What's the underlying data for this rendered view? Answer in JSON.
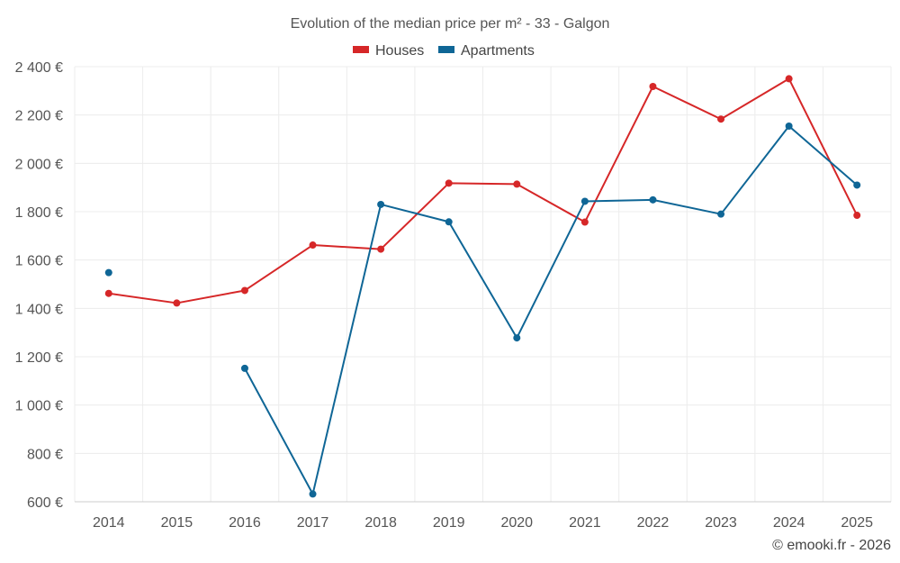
{
  "chart_data": {
    "type": "line",
    "title": "Evolution of the median price per m² - 33 - Galgon",
    "xlabel": "",
    "ylabel": "",
    "categories": [
      "2014",
      "2015",
      "2016",
      "2017",
      "2018",
      "2019",
      "2020",
      "2021",
      "2022",
      "2023",
      "2024",
      "2025"
    ],
    "ylim": [
      600,
      2400
    ],
    "yticks": [
      600,
      800,
      1000,
      1200,
      1400,
      1600,
      1800,
      2000,
      2200,
      2400
    ],
    "ytick_labels": [
      "600 €",
      "800 €",
      "1 000 €",
      "1 200 €",
      "1 400 €",
      "1 600 €",
      "1 800 €",
      "2 000 €",
      "2 200 €",
      "2 400 €"
    ],
    "grid": true,
    "legend_position": "top-center",
    "series": [
      {
        "name": "Houses",
        "color": "#d62728",
        "values": [
          1462,
          1422,
          1474,
          1662,
          1645,
          1918,
          1914,
          1757,
          2318,
          2183,
          2350,
          1785
        ]
      },
      {
        "name": "Apartments",
        "color": "#0f6696",
        "values": [
          1548,
          null,
          1152,
          632,
          1830,
          1758,
          1278,
          1843,
          1849,
          1790,
          2154,
          1910
        ]
      }
    ],
    "credit": "© emooki.fr - 2026"
  }
}
